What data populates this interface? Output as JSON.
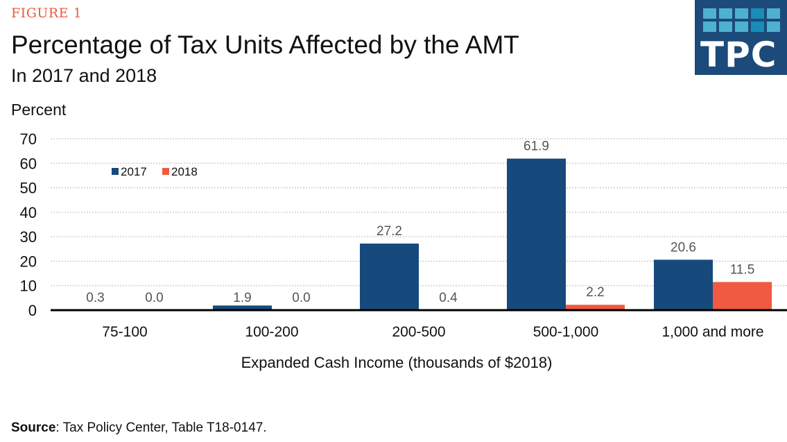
{
  "figure_label": "FIGURE 1",
  "logo": {
    "text": "TPC"
  },
  "source": {
    "label": "Source",
    "text": ": Tax Policy Center, Table T18-0147."
  },
  "chart_data": {
    "type": "bar",
    "title": "Percentage of Tax Units Affected by the AMT",
    "subtitle": "In 2017 and 2018",
    "ylabel": "Percent",
    "xlabel": "Expanded Cash Income (thousands of $2018)",
    "categories": [
      "75-100",
      "100-200",
      "200-500",
      "500-1,000",
      "1,000 and more"
    ],
    "series": [
      {
        "name": "2017",
        "color": "#174a7c",
        "values": [
          0.3,
          1.9,
          27.2,
          61.9,
          20.6
        ],
        "labels": [
          "0.3",
          "1.9",
          "27.2",
          "61.9",
          "20.6"
        ]
      },
      {
        "name": "2018",
        "color": "#ef5a40",
        "values": [
          0.0,
          0.0,
          0.4,
          2.2,
          11.5
        ],
        "labels": [
          "0.0",
          "0.0",
          "0.4",
          "2.2",
          "11.5"
        ]
      }
    ],
    "ylim": [
      0,
      70
    ],
    "yticks": [
      0,
      10,
      20,
      30,
      40,
      50,
      60,
      70
    ],
    "grid": true,
    "legend": "top-left"
  }
}
